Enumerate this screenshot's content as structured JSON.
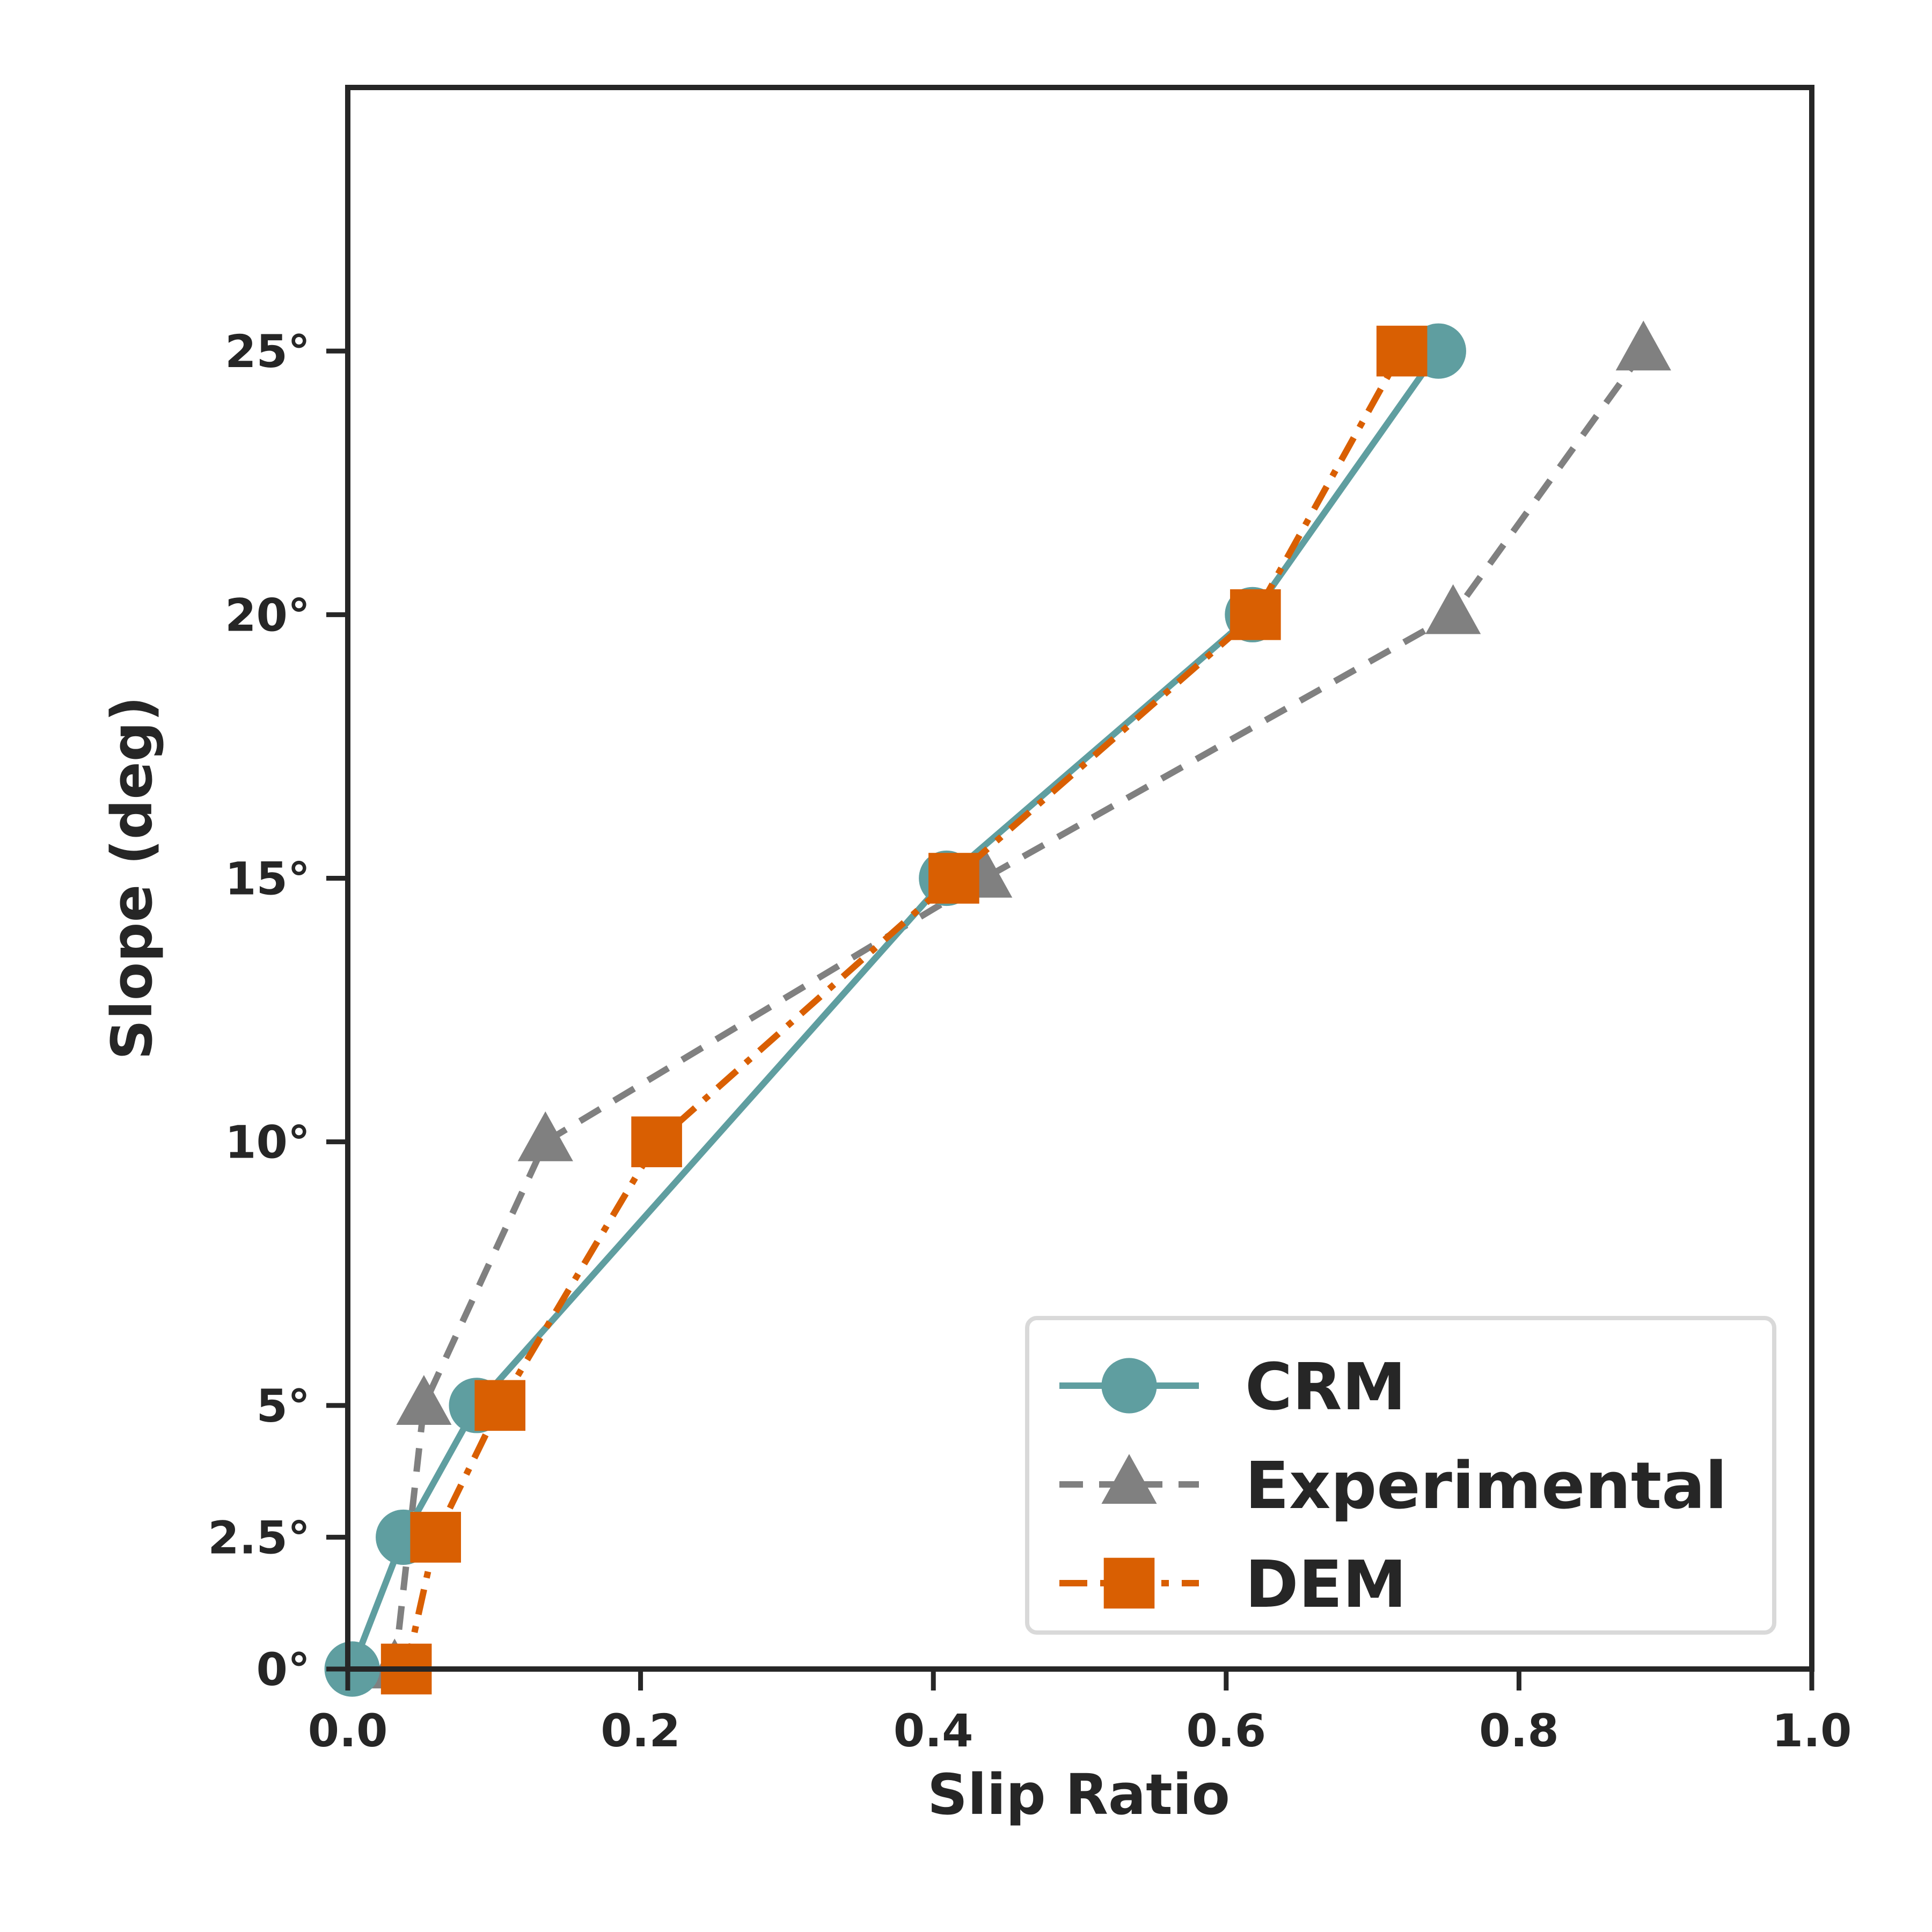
{
  "chart_data": {
    "type": "line",
    "title": "",
    "xlabel": "Slip Ratio",
    "ylabel": "Slope (deg)",
    "xlim": [
      0.0,
      1.0
    ],
    "ylim": [
      0,
      30
    ],
    "x_ticks": [
      {
        "value": 0.0,
        "label": "0.0"
      },
      {
        "value": 0.2,
        "label": "0.2"
      },
      {
        "value": 0.4,
        "label": "0.4"
      },
      {
        "value": 0.6,
        "label": "0.6"
      },
      {
        "value": 0.8,
        "label": "0.8"
      },
      {
        "value": 1.0,
        "label": "1.0"
      }
    ],
    "y_ticks": [
      {
        "value": 0,
        "label": "0°"
      },
      {
        "value": 2.5,
        "label": "2.5°"
      },
      {
        "value": 5,
        "label": "5°"
      },
      {
        "value": 10,
        "label": "10°"
      },
      {
        "value": 15,
        "label": "15°"
      },
      {
        "value": 20,
        "label": "20°"
      },
      {
        "value": 25,
        "label": "25°"
      }
    ],
    "legend_position": "bottom-right",
    "series": [
      {
        "name": "CRM",
        "color": "#5f9ea0",
        "marker": "circle",
        "line_style": "solid",
        "x": [
          0.003,
          0.038,
          0.088,
          0.409,
          0.618,
          0.745
        ],
        "y": [
          0,
          2.5,
          5,
          15,
          20,
          25
        ]
      },
      {
        "name": "Experimental",
        "color": "#808080",
        "marker": "triangle",
        "line_style": "dashed",
        "x": [
          0.032,
          0.052,
          0.135,
          0.435,
          0.755,
          0.885
        ],
        "y": [
          0,
          5,
          10,
          15,
          20,
          25
        ]
      },
      {
        "name": "DEM",
        "color": "#d95f02",
        "marker": "square",
        "line_style": "dashdot",
        "x": [
          0.04,
          0.06,
          0.104,
          0.211,
          0.414,
          0.62,
          0.72
        ],
        "y": [
          0,
          2.5,
          5,
          10,
          15,
          20,
          25
        ]
      }
    ]
  }
}
